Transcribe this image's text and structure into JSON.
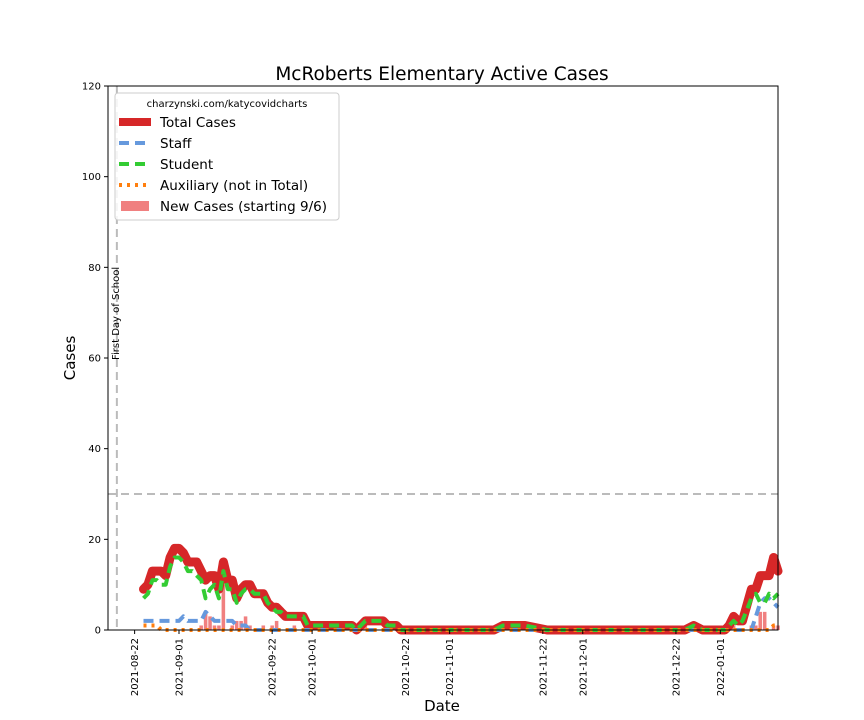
{
  "chart_data": {
    "type": "line",
    "title": "McRoberts Elementary Active Cases",
    "xlabel": "Date",
    "ylabel": "Cases",
    "ylim": [
      0,
      120
    ],
    "yticks": [
      0,
      20,
      40,
      60,
      80,
      100,
      120
    ],
    "xlim": [
      "2021-08-16",
      "2022-01-14"
    ],
    "xticks": [
      "2021-08-22",
      "2021-09-01",
      "2021-09-22",
      "2021-10-01",
      "2021-10-22",
      "2021-11-01",
      "2021-11-22",
      "2021-12-01",
      "2021-12-22",
      "2022-01-01"
    ],
    "grid": false,
    "threshold_line": {
      "y": 30,
      "style": "dashed",
      "color": "#bbbbbb"
    },
    "annotation": {
      "text": "First Day of School",
      "date": "2021-08-18"
    },
    "legend": {
      "position": "top-left",
      "title": "charzynski.com/katycovidcharts",
      "entries": [
        "Total Cases",
        "Staff",
        "Student",
        "Auxiliary (not in Total)",
        "New Cases (starting 9/6)"
      ]
    },
    "series": [
      {
        "name": "Total Cases",
        "style": "solid",
        "color": "#d62728",
        "points": [
          [
            "2021-08-24",
            9
          ],
          [
            "2021-08-25",
            10
          ],
          [
            "2021-08-26",
            13
          ],
          [
            "2021-08-27",
            13
          ],
          [
            "2021-08-28",
            13
          ],
          [
            "2021-08-29",
            12
          ],
          [
            "2021-08-30",
            16
          ],
          [
            "2021-08-31",
            18
          ],
          [
            "2021-09-01",
            18
          ],
          [
            "2021-09-02",
            17
          ],
          [
            "2021-09-03",
            15
          ],
          [
            "2021-09-04",
            15
          ],
          [
            "2021-09-05",
            15
          ],
          [
            "2021-09-06",
            13
          ],
          [
            "2021-09-07",
            11
          ],
          [
            "2021-09-08",
            12
          ],
          [
            "2021-09-09",
            12
          ],
          [
            "2021-09-10",
            9
          ],
          [
            "2021-09-11",
            15
          ],
          [
            "2021-09-12",
            11
          ],
          [
            "2021-09-13",
            11
          ],
          [
            "2021-09-14",
            7
          ],
          [
            "2021-09-15",
            9
          ],
          [
            "2021-09-16",
            10
          ],
          [
            "2021-09-17",
            10
          ],
          [
            "2021-09-18",
            8
          ],
          [
            "2021-09-19",
            8
          ],
          [
            "2021-09-20",
            8
          ],
          [
            "2021-09-21",
            6
          ],
          [
            "2021-09-22",
            5
          ],
          [
            "2021-09-23",
            5
          ],
          [
            "2021-09-24",
            4
          ],
          [
            "2021-09-25",
            3
          ],
          [
            "2021-09-26",
            3
          ],
          [
            "2021-09-27",
            3
          ],
          [
            "2021-09-28",
            3
          ],
          [
            "2021-09-29",
            3
          ],
          [
            "2021-09-30",
            1
          ],
          [
            "2021-10-01",
            1
          ],
          [
            "2021-10-02",
            1
          ],
          [
            "2021-10-10",
            1
          ],
          [
            "2021-10-11",
            0
          ],
          [
            "2021-10-12",
            1
          ],
          [
            "2021-10-13",
            2
          ],
          [
            "2021-10-17",
            2
          ],
          [
            "2021-10-18",
            1
          ],
          [
            "2021-10-20",
            1
          ],
          [
            "2021-10-21",
            0
          ],
          [
            "2021-11-04",
            0
          ],
          [
            "2021-11-11",
            0
          ],
          [
            "2021-11-13",
            1
          ],
          [
            "2021-11-16",
            1
          ],
          [
            "2021-11-18",
            1
          ],
          [
            "2021-11-23",
            0
          ],
          [
            "2021-12-01",
            0
          ],
          [
            "2021-12-24",
            0
          ],
          [
            "2021-12-26",
            1
          ],
          [
            "2021-12-28",
            0
          ],
          [
            "2022-01-02",
            0
          ],
          [
            "2022-01-03",
            1
          ],
          [
            "2022-01-04",
            3
          ],
          [
            "2022-01-05",
            2
          ],
          [
            "2022-01-06",
            2
          ],
          [
            "2022-01-08",
            9
          ],
          [
            "2022-01-09",
            9
          ],
          [
            "2022-01-10",
            12
          ],
          [
            "2022-01-11",
            12
          ],
          [
            "2022-01-12",
            12
          ],
          [
            "2022-01-13",
            16
          ],
          [
            "2022-01-14",
            13
          ]
        ]
      },
      {
        "name": "Staff",
        "style": "dashed",
        "color": "#6699dd",
        "points": [
          [
            "2021-08-24",
            2
          ],
          [
            "2021-08-27",
            2
          ],
          [
            "2021-08-30",
            2
          ],
          [
            "2021-09-01",
            2
          ],
          [
            "2021-09-02",
            3
          ],
          [
            "2021-09-03",
            2
          ],
          [
            "2021-09-06",
            2
          ],
          [
            "2021-09-07",
            4
          ],
          [
            "2021-09-08",
            3
          ],
          [
            "2021-09-09",
            2
          ],
          [
            "2021-09-10",
            2
          ],
          [
            "2021-09-12",
            2
          ],
          [
            "2021-09-13",
            2
          ],
          [
            "2021-09-14",
            1
          ],
          [
            "2021-09-16",
            1
          ],
          [
            "2021-09-17",
            0
          ],
          [
            "2021-09-22",
            0
          ],
          [
            "2021-09-30",
            0
          ],
          [
            "2021-10-21",
            0
          ],
          [
            "2022-01-04",
            0
          ],
          [
            "2022-01-06",
            0
          ],
          [
            "2022-01-08",
            0
          ],
          [
            "2022-01-10",
            6
          ],
          [
            "2022-01-11",
            7
          ],
          [
            "2022-01-12",
            7
          ],
          [
            "2022-01-13",
            6
          ],
          [
            "2022-01-14",
            5
          ]
        ]
      },
      {
        "name": "Student",
        "style": "dashed",
        "color": "#33cc33",
        "points": [
          [
            "2021-08-24",
            7
          ],
          [
            "2021-08-25",
            8
          ],
          [
            "2021-08-26",
            11
          ],
          [
            "2021-08-27",
            11
          ],
          [
            "2021-08-28",
            10
          ],
          [
            "2021-08-29",
            10
          ],
          [
            "2021-08-30",
            14
          ],
          [
            "2021-08-31",
            16
          ],
          [
            "2021-09-01",
            16
          ],
          [
            "2021-09-02",
            15
          ],
          [
            "2021-09-03",
            13
          ],
          [
            "2021-09-04",
            13
          ],
          [
            "2021-09-05",
            12
          ],
          [
            "2021-09-06",
            11
          ],
          [
            "2021-09-07",
            7
          ],
          [
            "2021-09-08",
            9
          ],
          [
            "2021-09-09",
            10
          ],
          [
            "2021-09-10",
            7
          ],
          [
            "2021-09-11",
            13
          ],
          [
            "2021-09-12",
            9
          ],
          [
            "2021-09-13",
            9
          ],
          [
            "2021-09-14",
            6
          ],
          [
            "2021-09-15",
            8
          ],
          [
            "2021-09-16",
            9
          ],
          [
            "2021-09-17",
            9
          ],
          [
            "2021-09-18",
            8
          ],
          [
            "2021-09-19",
            8
          ],
          [
            "2021-09-20",
            8
          ],
          [
            "2021-09-21",
            6
          ],
          [
            "2021-09-22",
            5
          ],
          [
            "2021-09-23",
            4
          ],
          [
            "2021-09-24",
            4
          ],
          [
            "2021-09-25",
            3
          ],
          [
            "2021-09-26",
            3
          ],
          [
            "2021-09-27",
            3
          ],
          [
            "2021-09-28",
            3
          ],
          [
            "2021-09-29",
            3
          ],
          [
            "2021-09-30",
            1
          ],
          [
            "2021-10-01",
            1
          ],
          [
            "2021-10-02",
            1
          ],
          [
            "2021-10-10",
            1
          ],
          [
            "2021-10-11",
            0
          ],
          [
            "2021-10-12",
            1
          ],
          [
            "2021-10-13",
            2
          ],
          [
            "2021-10-17",
            2
          ],
          [
            "2021-10-18",
            1
          ],
          [
            "2021-10-20",
            1
          ],
          [
            "2021-10-21",
            0
          ],
          [
            "2021-11-04",
            0
          ],
          [
            "2021-11-11",
            0
          ],
          [
            "2021-11-13",
            1
          ],
          [
            "2021-11-16",
            1
          ],
          [
            "2021-11-18",
            1
          ],
          [
            "2021-11-23",
            0
          ],
          [
            "2021-12-01",
            0
          ],
          [
            "2021-12-24",
            0
          ],
          [
            "2021-12-26",
            1
          ],
          [
            "2021-12-28",
            0
          ],
          [
            "2022-01-02",
            0
          ],
          [
            "2022-01-03",
            1
          ],
          [
            "2022-01-04",
            2
          ],
          [
            "2022-01-05",
            1
          ],
          [
            "2022-01-06",
            2
          ],
          [
            "2022-01-08",
            7
          ],
          [
            "2022-01-09",
            8
          ],
          [
            "2022-01-10",
            6
          ],
          [
            "2022-01-11",
            6
          ],
          [
            "2022-01-12",
            8
          ],
          [
            "2022-01-13",
            7
          ],
          [
            "2022-01-14",
            8
          ]
        ]
      },
      {
        "name": "Auxiliary (not in Total)",
        "style": "dotted",
        "color": "#ff7f0e",
        "points": [
          [
            "2021-08-24",
            1
          ],
          [
            "2021-08-25",
            1
          ],
          [
            "2021-08-26",
            1
          ],
          [
            "2021-08-27",
            1
          ],
          [
            "2021-08-28",
            0
          ],
          [
            "2021-09-22",
            0
          ],
          [
            "2022-01-12",
            0
          ],
          [
            "2022-01-13",
            1
          ],
          [
            "2022-01-14",
            1
          ]
        ]
      }
    ],
    "new_cases": {
      "name": "New Cases (starting 9/6)",
      "color": "#f08080",
      "dates": [
        "2021-09-06",
        "2021-09-07",
        "2021-09-08",
        "2021-09-09",
        "2021-09-10",
        "2021-09-11",
        "2021-09-13",
        "2021-09-14",
        "2021-09-15",
        "2021-09-16",
        "2021-09-17",
        "2021-09-20",
        "2021-09-22",
        "2021-09-23",
        "2021-09-27",
        "2021-10-13",
        "2022-01-04",
        "2022-01-08",
        "2022-01-09",
        "2022-01-10",
        "2022-01-11",
        "2022-01-13",
        "2022-01-14"
      ],
      "values": [
        1,
        4,
        3,
        1,
        1,
        10,
        1,
        2,
        2,
        3,
        1,
        1,
        1,
        2,
        1,
        1,
        1,
        1,
        1,
        4,
        4,
        1,
        1
      ]
    }
  }
}
